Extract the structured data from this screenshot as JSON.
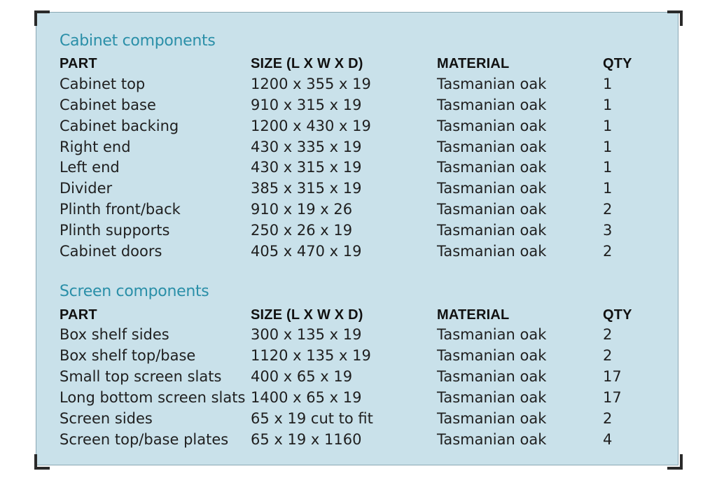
{
  "sections": [
    {
      "title": "Cabinet components",
      "headers": {
        "part": "PART",
        "size": "SIZE (L X W X D)",
        "material": "MATERIAL",
        "qty": "QTY"
      },
      "rows": [
        {
          "part": "Cabinet top",
          "size": "1200 x 355 x 19",
          "material": "Tasmanian oak",
          "qty": "1"
        },
        {
          "part": "Cabinet base",
          "size": "910 x 315 x 19",
          "material": "Tasmanian oak",
          "qty": "1"
        },
        {
          "part": "Cabinet backing",
          "size": "1200 x 430 x 19",
          "material": "Tasmanian oak",
          "qty": "1"
        },
        {
          "part": "Right end",
          "size": "430 x 335 x 19",
          "material": "Tasmanian oak",
          "qty": "1"
        },
        {
          "part": "Left end",
          "size": "430 x 315 x 19",
          "material": "Tasmanian oak",
          "qty": "1"
        },
        {
          "part": "Divider",
          "size": "385 x 315 x 19",
          "material": "Tasmanian oak",
          "qty": "1"
        },
        {
          "part": "Plinth front/back",
          "size": "910 x 19 x 26",
          "material": "Tasmanian oak",
          "qty": "2"
        },
        {
          "part": "Plinth supports",
          "size": "250 x 26 x 19",
          "material": "Tasmanian oak",
          "qty": "3"
        },
        {
          "part": "Cabinet doors",
          "size": "405 x 470 x 19",
          "material": "Tasmanian oak",
          "qty": "2"
        }
      ]
    },
    {
      "title": "Screen components",
      "headers": {
        "part": "PART",
        "size": "SIZE (L X W X D)",
        "material": "MATERIAL",
        "qty": "QTY"
      },
      "rows": [
        {
          "part": "Box shelf sides",
          "size": "300 x 135 x 19",
          "material": "Tasmanian oak",
          "qty": "2"
        },
        {
          "part": "Box shelf top/base",
          "size": "1120 x 135 x 19",
          "material": "Tasmanian oak",
          "qty": "2"
        },
        {
          "part": "Small top screen slats",
          "size": "400 x 65 x 19",
          "material": "Tasmanian oak",
          "qty": "17"
        },
        {
          "part": "Long bottom screen slats",
          "size": "1400 x 65 x 19",
          "material": "Tasmanian oak",
          "qty": "17"
        },
        {
          "part": "Screen sides",
          "size": "65 x 19 cut to fit",
          "material": "Tasmanian oak",
          "qty": "2"
        },
        {
          "part": "Screen top/base plates",
          "size": "65 x 19 x 1160",
          "material": "Tasmanian oak",
          "qty": "4"
        }
      ]
    }
  ],
  "colors": {
    "panel_background": "#c9e1ea",
    "section_title": "#2a8fa8",
    "text": "#1f1f1f"
  }
}
